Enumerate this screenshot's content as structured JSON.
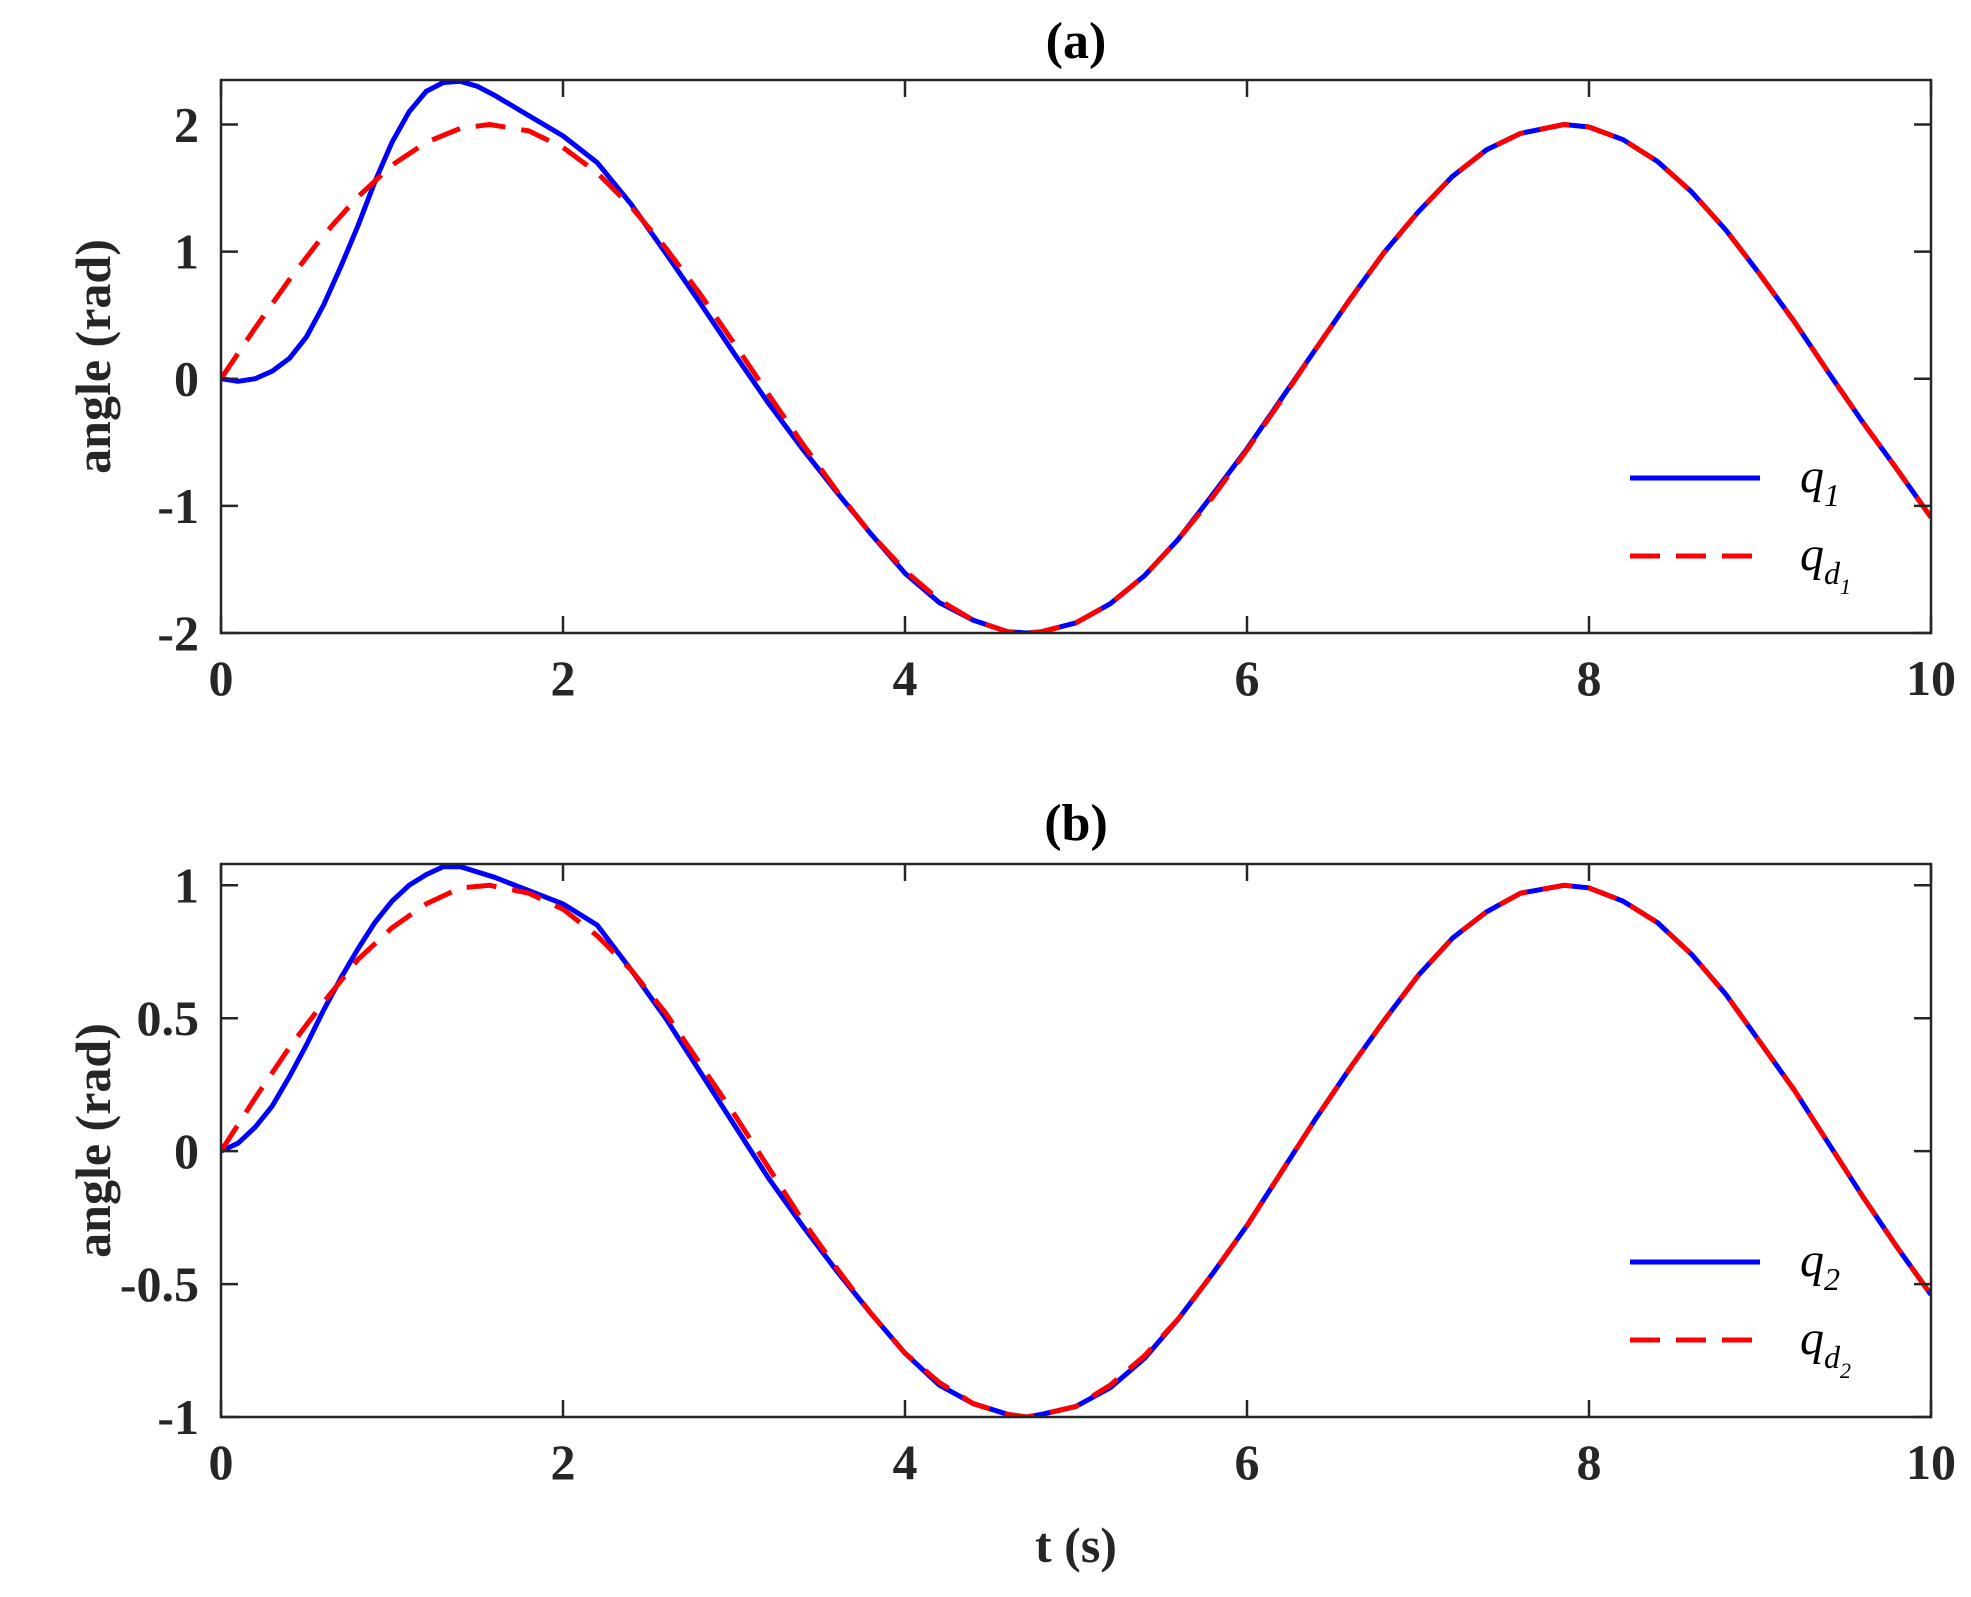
{
  "colors": {
    "actual": "#0000ff",
    "desired": "#ff0000",
    "axes": "#262626"
  },
  "chart_data": [
    {
      "type": "line",
      "title": "(a)",
      "xlabel": "",
      "ylabel": "angle (rad)",
      "xlim": [
        0,
        10
      ],
      "ylim": [
        -2,
        2.35
      ],
      "xticks": [
        0,
        2,
        4,
        6,
        8,
        10
      ],
      "xtick_labels": [
        "0",
        "2",
        "4",
        "6",
        "8",
        "10"
      ],
      "yticks": [
        -2,
        -1,
        0,
        1,
        2
      ],
      "ytick_labels": [
        "-2",
        "-1",
        "0",
        "1",
        "2"
      ],
      "grid": false,
      "legend_position": "bottom-right",
      "series": [
        {
          "name": "q",
          "name_sub": "1",
          "name_subsub": "",
          "style": "solid",
          "color": "#0000ff",
          "x": [
            0,
            0.1,
            0.2,
            0.3,
            0.4,
            0.5,
            0.6,
            0.7,
            0.8,
            0.9,
            1.0,
            1.1,
            1.2,
            1.3,
            1.4,
            1.5,
            1.6,
            1.8,
            2.0,
            2.2,
            2.4,
            2.6,
            2.8,
            3.0,
            3.2,
            3.4,
            3.6,
            3.8,
            4.0,
            4.2,
            4.4,
            4.6,
            4.712,
            4.8,
            5.0,
            5.2,
            5.4,
            5.6,
            5.8,
            6.0,
            6.2,
            6.4,
            6.6,
            6.8,
            7.0,
            7.2,
            7.4,
            7.6,
            7.854,
            8.0,
            8.2,
            8.4,
            8.6,
            8.8,
            9.0,
            9.2,
            9.4,
            9.6,
            9.8,
            10.0
          ],
          "y": [
            0,
            -0.02,
            0.0,
            0.06,
            0.16,
            0.33,
            0.58,
            0.88,
            1.2,
            1.55,
            1.86,
            2.1,
            2.26,
            2.33,
            2.34,
            2.3,
            2.23,
            2.07,
            1.91,
            1.7,
            1.37,
            0.99,
            0.6,
            0.2,
            -0.19,
            -0.55,
            -0.89,
            -1.22,
            -1.53,
            -1.76,
            -1.9,
            -1.99,
            -2.0,
            -1.99,
            -1.92,
            -1.77,
            -1.55,
            -1.26,
            -0.91,
            -0.55,
            -0.16,
            0.23,
            0.62,
            0.99,
            1.31,
            1.59,
            1.8,
            1.93,
            2.0,
            1.98,
            1.88,
            1.71,
            1.47,
            1.17,
            0.82,
            0.45,
            0.05,
            -0.34,
            -0.71,
            -1.09
          ]
        },
        {
          "name": "q",
          "name_sub": "d",
          "name_subsub": "1",
          "style": "dashed",
          "color": "#ff0000",
          "x": [
            0,
            0.2,
            0.4,
            0.6,
            0.8,
            1.0,
            1.2,
            1.4,
            1.571,
            1.8,
            2.0,
            2.2,
            2.4,
            2.6,
            2.8,
            3.0,
            3.2,
            3.4,
            3.6,
            3.8,
            4.0,
            4.2,
            4.4,
            4.6,
            4.712,
            4.8,
            5.0,
            5.2,
            5.4,
            5.6,
            5.8,
            6.0,
            6.2,
            6.4,
            6.6,
            6.8,
            7.0,
            7.2,
            7.4,
            7.6,
            7.854,
            8.0,
            8.2,
            8.4,
            8.6,
            8.8,
            9.0,
            9.2,
            9.4,
            9.6,
            9.8,
            10.0
          ],
          "y": [
            0,
            0.4,
            0.78,
            1.13,
            1.43,
            1.68,
            1.86,
            1.97,
            2.0,
            1.95,
            1.82,
            1.62,
            1.35,
            1.03,
            0.67,
            0.28,
            -0.12,
            -0.51,
            -0.88,
            -1.22,
            -1.51,
            -1.74,
            -1.9,
            -1.99,
            -2.0,
            -1.99,
            -1.92,
            -1.77,
            -1.55,
            -1.26,
            -0.93,
            -0.56,
            -0.17,
            0.23,
            0.62,
            0.99,
            1.31,
            1.59,
            1.8,
            1.93,
            2.0,
            1.98,
            1.88,
            1.71,
            1.47,
            1.17,
            0.82,
            0.45,
            0.05,
            -0.34,
            -0.71,
            -1.09
          ]
        }
      ]
    },
    {
      "type": "line",
      "title": "(b)",
      "xlabel": "t (s)",
      "ylabel": "angle (rad)",
      "xlim": [
        0,
        10
      ],
      "ylim": [
        -1,
        1.08
      ],
      "xticks": [
        0,
        2,
        4,
        6,
        8,
        10
      ],
      "xtick_labels": [
        "0",
        "2",
        "4",
        "6",
        "8",
        "10"
      ],
      "yticks": [
        -1,
        -0.5,
        0,
        0.5,
        1
      ],
      "ytick_labels": [
        "-1",
        "-0.5",
        "0",
        "0.5",
        "1"
      ],
      "grid": false,
      "legend_position": "bottom-right",
      "series": [
        {
          "name": "q",
          "name_sub": "2",
          "name_subsub": "",
          "style": "solid",
          "color": "#0000ff",
          "x": [
            0,
            0.1,
            0.2,
            0.3,
            0.4,
            0.5,
            0.6,
            0.7,
            0.8,
            0.9,
            1.0,
            1.1,
            1.2,
            1.3,
            1.4,
            1.5,
            1.6,
            1.8,
            2.0,
            2.2,
            2.4,
            2.6,
            2.8,
            3.0,
            3.2,
            3.4,
            3.6,
            3.8,
            4.0,
            4.2,
            4.4,
            4.6,
            4.712,
            4.8,
            5.0,
            5.2,
            5.4,
            5.6,
            5.8,
            6.0,
            6.2,
            6.4,
            6.6,
            6.8,
            7.0,
            7.2,
            7.4,
            7.6,
            7.854,
            8.0,
            8.2,
            8.4,
            8.6,
            8.8,
            9.0,
            9.2,
            9.4,
            9.6,
            9.8,
            10.0
          ],
          "y": [
            0,
            0.03,
            0.09,
            0.17,
            0.28,
            0.4,
            0.53,
            0.65,
            0.76,
            0.86,
            0.94,
            1.0,
            1.04,
            1.07,
            1.07,
            1.05,
            1.03,
            0.98,
            0.93,
            0.85,
            0.68,
            0.5,
            0.3,
            0.1,
            -0.1,
            -0.28,
            -0.45,
            -0.61,
            -0.76,
            -0.88,
            -0.95,
            -0.99,
            -1.0,
            -0.99,
            -0.96,
            -0.89,
            -0.78,
            -0.63,
            -0.46,
            -0.28,
            -0.08,
            0.12,
            0.31,
            0.49,
            0.66,
            0.8,
            0.9,
            0.97,
            1.0,
            0.99,
            0.94,
            0.86,
            0.74,
            0.59,
            0.41,
            0.23,
            0.03,
            -0.17,
            -0.36,
            -0.54
          ]
        },
        {
          "name": "q",
          "name_sub": "d",
          "name_subsub": "2",
          "style": "dashed",
          "color": "#ff0000",
          "x": [
            0,
            0.2,
            0.4,
            0.6,
            0.8,
            1.0,
            1.2,
            1.4,
            1.571,
            1.8,
            2.0,
            2.2,
            2.4,
            2.6,
            2.8,
            3.0,
            3.2,
            3.4,
            3.6,
            3.8,
            4.0,
            4.2,
            4.4,
            4.6,
            4.712,
            4.8,
            5.0,
            5.2,
            5.4,
            5.6,
            5.8,
            6.0,
            6.2,
            6.4,
            6.6,
            6.8,
            7.0,
            7.2,
            7.4,
            7.6,
            7.854,
            8.0,
            8.2,
            8.4,
            8.6,
            8.8,
            9.0,
            9.2,
            9.4,
            9.6,
            9.8,
            10.0
          ],
          "y": [
            0,
            0.2,
            0.39,
            0.56,
            0.72,
            0.84,
            0.93,
            0.99,
            1.0,
            0.97,
            0.91,
            0.81,
            0.68,
            0.52,
            0.33,
            0.14,
            -0.06,
            -0.26,
            -0.44,
            -0.61,
            -0.76,
            -0.87,
            -0.95,
            -0.99,
            -1.0,
            -0.99,
            -0.96,
            -0.88,
            -0.77,
            -0.63,
            -0.46,
            -0.28,
            -0.08,
            0.12,
            0.31,
            0.49,
            0.66,
            0.8,
            0.9,
            0.97,
            1.0,
            0.99,
            0.94,
            0.86,
            0.74,
            0.59,
            0.41,
            0.23,
            0.03,
            -0.17,
            -0.36,
            -0.54
          ]
        }
      ]
    }
  ]
}
